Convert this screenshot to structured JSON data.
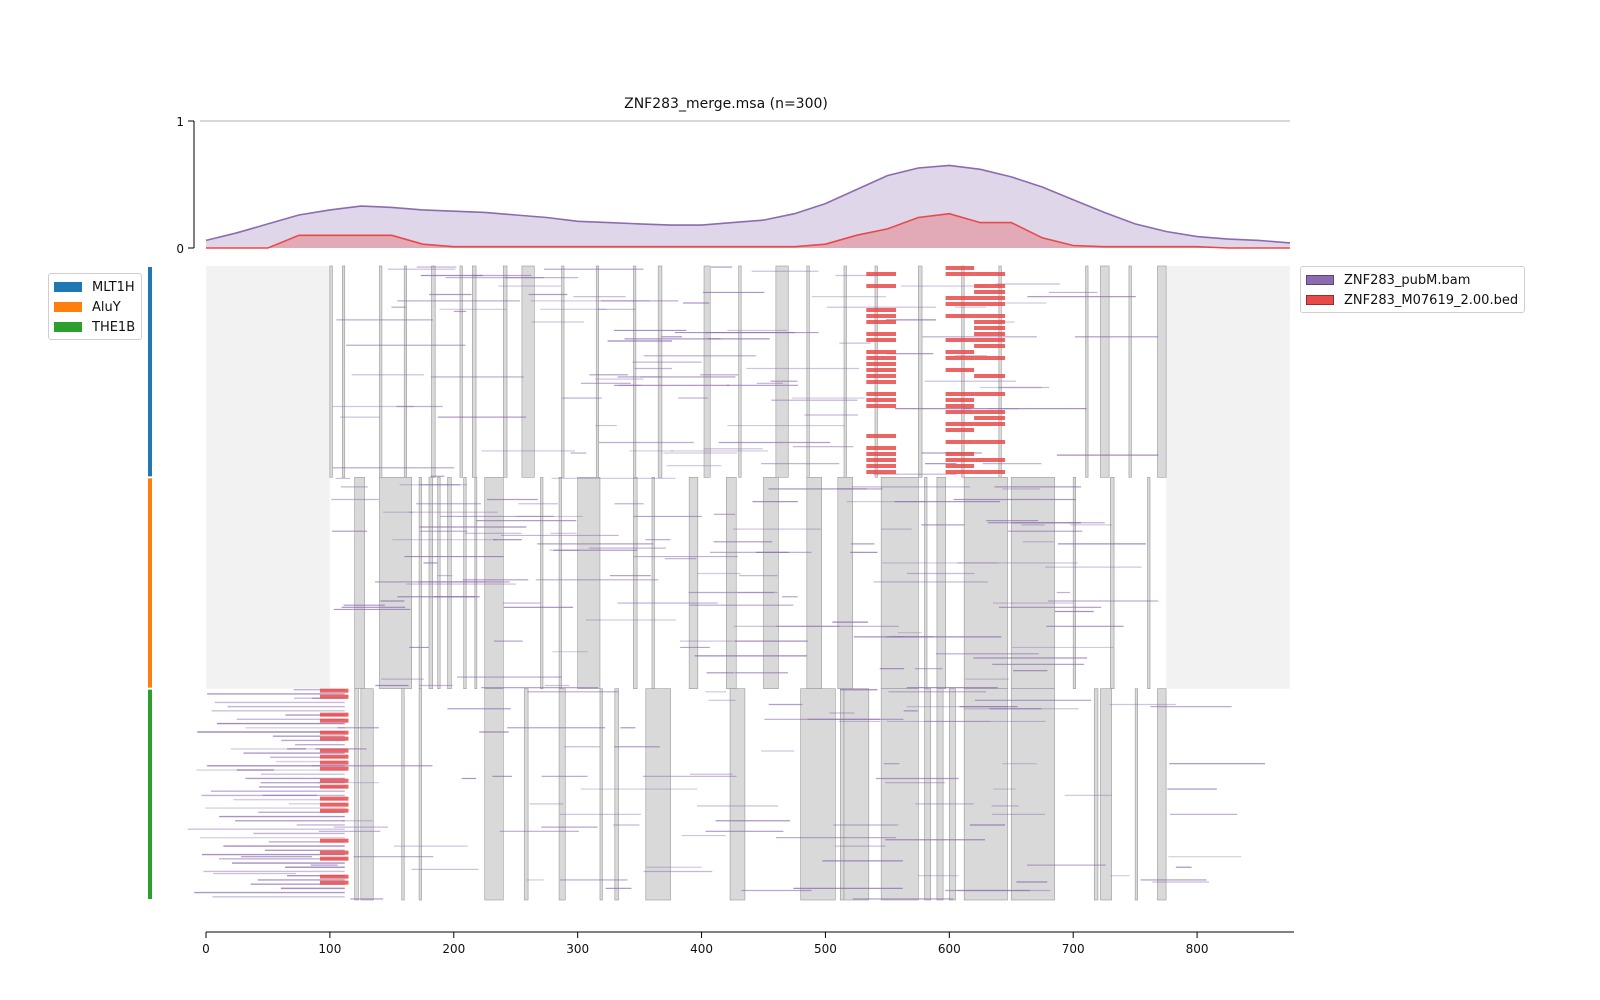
{
  "chart_data": {
    "type": "area",
    "title": "ZNF283_merge.msa (n=300)",
    "x_ticks": [
      0,
      100,
      200,
      300,
      400,
      500,
      600,
      700,
      800
    ],
    "xlim": [
      0,
      875
    ],
    "profile": {
      "ylim": [
        0,
        1
      ],
      "y_ticks": [
        0,
        1
      ],
      "x": [
        0,
        25,
        50,
        75,
        100,
        125,
        150,
        175,
        200,
        225,
        250,
        275,
        300,
        325,
        350,
        375,
        400,
        425,
        450,
        475,
        500,
        525,
        550,
        575,
        600,
        625,
        650,
        675,
        700,
        725,
        750,
        775,
        800,
        825,
        850,
        875
      ],
      "series": [
        {
          "name": "ZNF283_pubM.bam",
          "color": "#8c6bb1",
          "values": [
            0.06,
            0.12,
            0.19,
            0.26,
            0.3,
            0.33,
            0.32,
            0.3,
            0.29,
            0.28,
            0.26,
            0.24,
            0.21,
            0.2,
            0.19,
            0.18,
            0.18,
            0.2,
            0.22,
            0.27,
            0.35,
            0.46,
            0.57,
            0.63,
            0.65,
            0.62,
            0.56,
            0.48,
            0.38,
            0.28,
            0.19,
            0.13,
            0.09,
            0.07,
            0.06,
            0.04
          ]
        },
        {
          "name": "ZNF283_M07619_2.00.bed",
          "color": "#e84a4a",
          "values": [
            0.0,
            0.0,
            0.0,
            0.1,
            0.1,
            0.1,
            0.1,
            0.03,
            0.01,
            0.01,
            0.01,
            0.01,
            0.01,
            0.01,
            0.01,
            0.01,
            0.01,
            0.01,
            0.01,
            0.01,
            0.03,
            0.1,
            0.15,
            0.24,
            0.27,
            0.2,
            0.2,
            0.08,
            0.02,
            0.01,
            0.01,
            0.01,
            0.01,
            0.0,
            0.0,
            0.0
          ]
        }
      ]
    },
    "msa": {
      "rows": 300,
      "groups": [
        {
          "name": "MLT1H",
          "color": "#1f77b4",
          "rows": 100
        },
        {
          "name": "AluY",
          "color": "#ff7f0e",
          "rows": 100
        },
        {
          "name": "THE1B",
          "color": "#2ca02c",
          "rows": 100
        }
      ],
      "gap_color": "#d9d9d9",
      "outside_color": "#f2f2f2",
      "gap_columns": [
        {
          "group": 0,
          "ranges": [
            [
              100,
              102
            ],
            [
              110,
              112
            ],
            [
              140,
              142
            ],
            [
              160,
              162
            ],
            [
              182,
              185
            ],
            [
              205,
              207
            ],
            [
              215,
              218
            ],
            [
              240,
              243
            ],
            [
              255,
              265
            ],
            [
              287,
              289
            ],
            [
              315,
              317
            ],
            [
              345,
              347
            ],
            [
              365,
              368
            ],
            [
              402,
              407
            ],
            [
              430,
              432
            ],
            [
              460,
              470
            ],
            [
              485,
              487
            ],
            [
              515,
              517
            ],
            [
              540,
              542
            ],
            [
              575,
              578
            ],
            [
              610,
              612
            ],
            [
              640,
              642
            ],
            [
              710,
              712
            ],
            [
              722,
              729
            ],
            [
              745,
              747
            ],
            [
              768,
              775
            ]
          ]
        },
        {
          "group": 1,
          "ranges": [
            [
              120,
              128
            ],
            [
              140,
              166
            ],
            [
              172,
              174
            ],
            [
              180,
              183
            ],
            [
              187,
              189
            ],
            [
              195,
              198
            ],
            [
              208,
              210
            ],
            [
              217,
              217
            ],
            [
              225,
              240
            ],
            [
              270,
              272
            ],
            [
              285,
              287
            ],
            [
              300,
              318
            ],
            [
              345,
              348
            ],
            [
              360,
              362
            ],
            [
              390,
              397
            ],
            [
              420,
              428
            ],
            [
              450,
              462
            ],
            [
              485,
              497
            ],
            [
              510,
              522
            ],
            [
              545,
              575
            ],
            [
              580,
              582
            ],
            [
              590,
              597
            ],
            [
              612,
              647
            ],
            [
              650,
              685
            ],
            [
              700,
              702
            ],
            [
              730,
              733
            ],
            [
              760,
              762
            ]
          ]
        },
        {
          "group": 2,
          "ranges": [
            [
              120,
              123
            ],
            [
              125,
              135
            ],
            [
              158,
              160
            ],
            [
              172,
              174
            ],
            [
              225,
              240
            ],
            [
              257,
              260
            ],
            [
              285,
              290
            ],
            [
              318,
              320
            ],
            [
              330,
              333
            ],
            [
              355,
              375
            ],
            [
              423,
              435
            ],
            [
              480,
              508
            ],
            [
              512,
              515
            ],
            [
              515,
              535
            ],
            [
              545,
              575
            ],
            [
              580,
              585
            ],
            [
              590,
              595
            ],
            [
              600,
              605
            ],
            [
              612,
              647
            ],
            [
              650,
              685
            ],
            [
              717,
              720
            ],
            [
              722,
              731
            ],
            [
              750,
              752
            ],
            [
              768,
              775
            ]
          ]
        }
      ],
      "seq_extent": [
        {
          "group": 0,
          "start": 100,
          "end": 775
        },
        {
          "group": 1,
          "start": 100,
          "end": 775
        },
        {
          "group": 2,
          "start": 0,
          "end": 875
        }
      ],
      "hotspots": [
        {
          "group": 0,
          "from": 533,
          "to": 557,
          "series": "ZNF283_M07619_2.00.bed"
        },
        {
          "group": 0,
          "from": 597,
          "to": 620,
          "series": "ZNF283_M07619_2.00.bed"
        },
        {
          "group": 0,
          "from": 620,
          "to": 645,
          "series": "ZNF283_M07619_2.00.bed"
        },
        {
          "group": 2,
          "from": 92,
          "to": 115,
          "series": "ZNF283_M07619_2.00.bed"
        }
      ]
    }
  },
  "legends": {
    "groups": [
      {
        "label": "MLT1H",
        "color": "#1f77b4"
      },
      {
        "label": "AluY",
        "color": "#ff7f0e"
      },
      {
        "label": "THE1B",
        "color": "#2ca02c"
      }
    ],
    "series": [
      {
        "label": "ZNF283_pubM.bam",
        "color": "#8c6bb1"
      },
      {
        "label": "ZNF283_M07619_2.00.bed",
        "color": "#e84a4a"
      }
    ]
  }
}
